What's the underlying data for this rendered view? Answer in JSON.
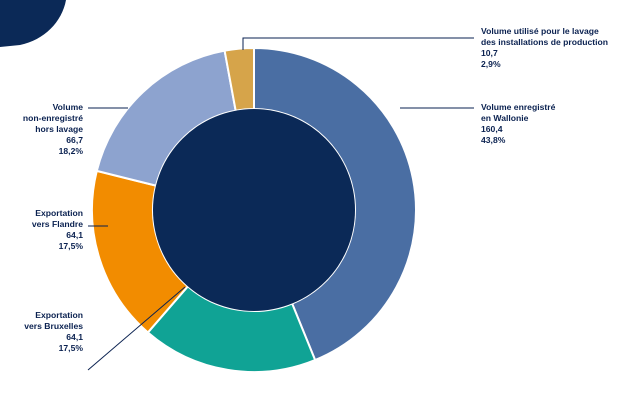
{
  "chart_data": {
    "type": "pie",
    "variant": "donut",
    "title": "",
    "slices": [
      {
        "label_lines": [
          "Volume enregistré",
          "en Wallonie"
        ],
        "value": "160,4",
        "percent": "43,8%",
        "share": 43.8,
        "color": "#4a6ea3"
      },
      {
        "label_lines": [
          "Exportation",
          "vers Bruxelles"
        ],
        "value": "64,1",
        "percent": "17,5%",
        "share": 17.5,
        "color": "#10a395"
      },
      {
        "label_lines": [
          "Exportation",
          "vers Flandre"
        ],
        "value": "64,1",
        "percent": "17,5%",
        "share": 17.5,
        "color": "#f28c00"
      },
      {
        "label_lines": [
          "Volume",
          "non-enregistré",
          "hors lavage"
        ],
        "value": "66,7",
        "percent": "18,2%",
        "share": 18.2,
        "color": "#8da3cf"
      },
      {
        "label_lines": [
          "Volume utilisé pour le lavage",
          "des installations de production"
        ],
        "value": "10,7",
        "percent": "2,9%",
        "share": 2.9,
        "color": "#d6a44a"
      }
    ],
    "center_color": "#0b2957"
  },
  "decor": {
    "corner_color": "#0b2957"
  }
}
